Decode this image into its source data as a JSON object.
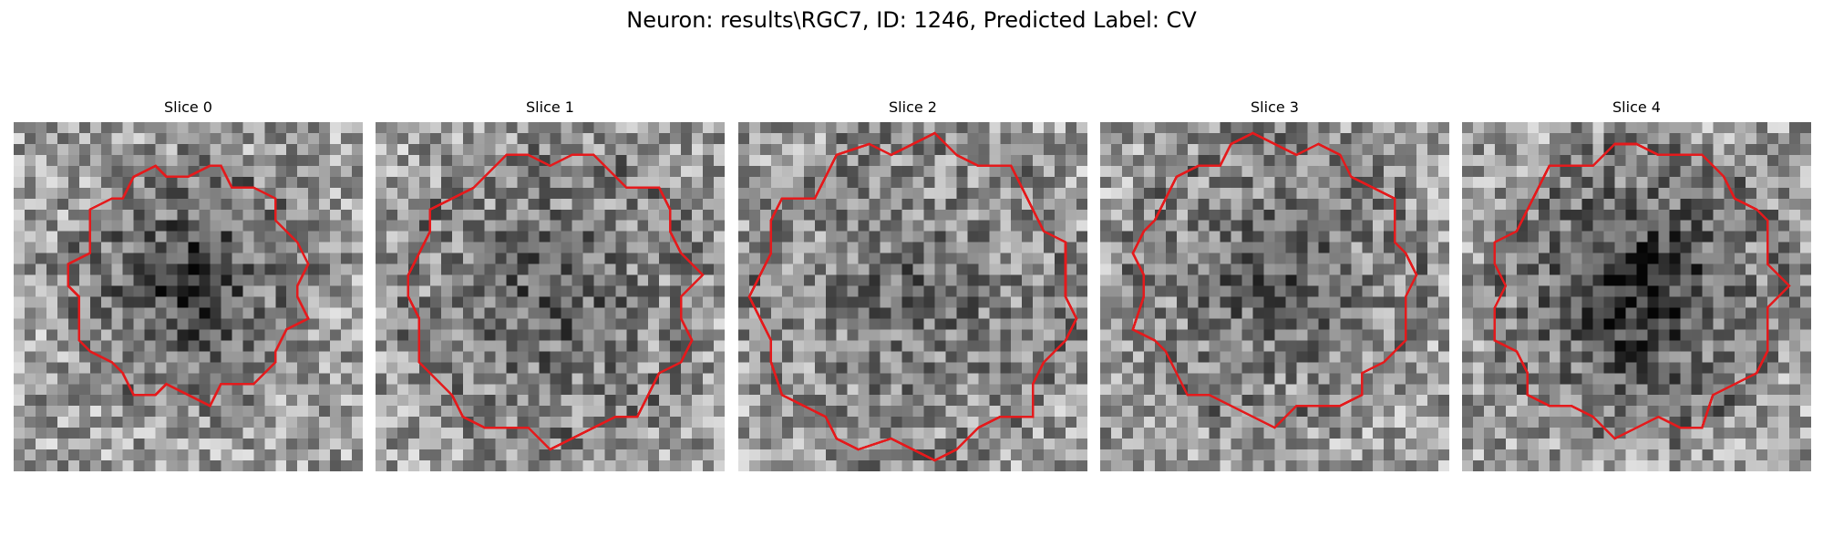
{
  "figure": {
    "title": "Neuron: results\\RGC7, ID: 1246, Predicted Label: CV"
  },
  "panels": [
    {
      "label": "Slice 0",
      "seed": 11,
      "center": [
        0.5,
        0.46
      ],
      "radius": 0.34,
      "darkness": 0.45,
      "contour_color": "#e41a1c"
    },
    {
      "label": "Slice 1",
      "seed": 23,
      "center": [
        0.5,
        0.5
      ],
      "radius": 0.42,
      "darkness": 0.28,
      "contour_color": "#e41a1c"
    },
    {
      "label": "Slice 2",
      "seed": 37,
      "center": [
        0.5,
        0.5
      ],
      "radius": 0.46,
      "darkness": 0.22,
      "contour_color": "#e41a1c"
    },
    {
      "label": "Slice 3",
      "seed": 53,
      "center": [
        0.5,
        0.45
      ],
      "radius": 0.41,
      "darkness": 0.28,
      "contour_color": "#e41a1c"
    },
    {
      "label": "Slice 4",
      "seed": 71,
      "center": [
        0.5,
        0.48
      ],
      "radius": 0.42,
      "darkness": 0.5,
      "contour_color": "#e41a1c"
    }
  ]
}
